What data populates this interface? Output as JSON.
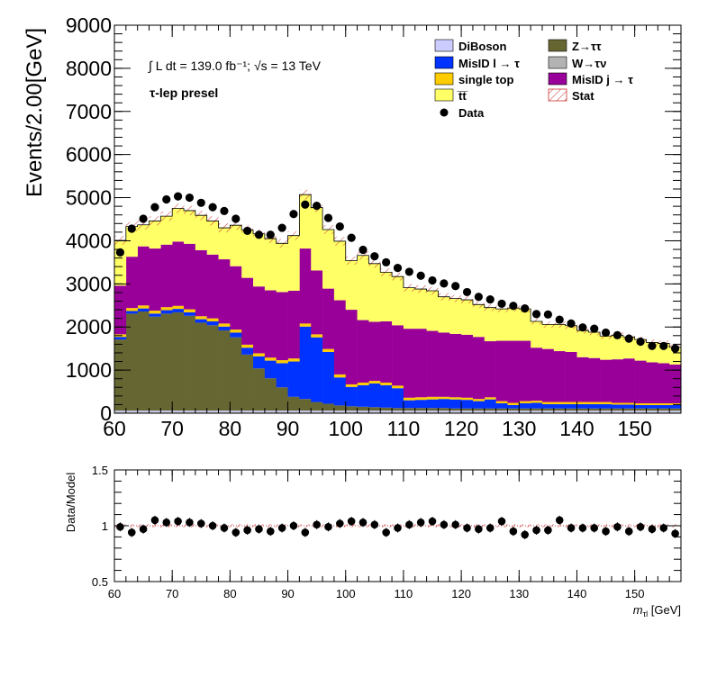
{
  "chart_data": [
    {
      "type": "bar",
      "ylabel": "Events/2.00[GeV]",
      "xlim": [
        60,
        158
      ],
      "ylim": [
        0,
        9000
      ],
      "bin_width": 2,
      "x_ticks": [
        60,
        70,
        80,
        90,
        100,
        110,
        120,
        130,
        140,
        150
      ],
      "y_ticks": [
        0,
        1000,
        2000,
        3000,
        4000,
        5000,
        6000,
        7000,
        8000,
        9000
      ],
      "annotation_lumi": "∫ L dt = 139.0 fb⁻¹;  √s = 13 TeV",
      "annotation_region": "τ-lep presel",
      "legend_placement": "top-right",
      "legend": [
        {
          "name": "DiBoson",
          "color": "#ccccff"
        },
        {
          "name": "Z→ττ",
          "color": "#666633"
        },
        {
          "name": "MisID l → τ",
          "color": "#0033ff"
        },
        {
          "name": "W→τν",
          "color": "#b3b3b3"
        },
        {
          "name": "single top",
          "color": "#ffcc00"
        },
        {
          "name": "MisID j → τ",
          "color": "#990099"
        },
        {
          "name": "t̅t̅",
          "color": "#ffff66"
        },
        {
          "name": "Stat",
          "color": "#cc3333"
        },
        {
          "name": "Data",
          "color": "#000000"
        }
      ],
      "stack_order": [
        "W→τν",
        "DiBoson",
        "Z→ττ",
        "MisID l → τ",
        "single top",
        "MisID j → τ",
        "t̅t̅"
      ],
      "x_bin_low_edges": [
        60,
        62,
        64,
        66,
        68,
        70,
        72,
        74,
        76,
        78,
        80,
        82,
        84,
        86,
        88,
        90,
        92,
        94,
        96,
        98,
        100,
        102,
        104,
        106,
        108,
        110,
        112,
        114,
        116,
        118,
        120,
        122,
        124,
        126,
        128,
        130,
        132,
        134,
        136,
        138,
        140,
        142,
        144,
        146,
        148,
        150,
        152,
        154,
        156
      ],
      "series": [
        {
          "name": "W→τν",
          "color": "#b3b3b3",
          "values": [
            30,
            30,
            30,
            30,
            30,
            30,
            30,
            30,
            30,
            30,
            30,
            30,
            30,
            30,
            30,
            30,
            30,
            30,
            30,
            30,
            30,
            30,
            30,
            30,
            30,
            30,
            30,
            30,
            30,
            30,
            30,
            30,
            30,
            30,
            30,
            30,
            30,
            30,
            30,
            30,
            30,
            30,
            30,
            30,
            30,
            30,
            30,
            30,
            30
          ]
        },
        {
          "name": "DiBoson",
          "color": "#ccccff",
          "values": [
            30,
            30,
            30,
            30,
            30,
            30,
            30,
            30,
            30,
            30,
            30,
            30,
            30,
            30,
            30,
            30,
            30,
            30,
            30,
            30,
            30,
            30,
            30,
            30,
            30,
            30,
            30,
            30,
            30,
            30,
            30,
            30,
            30,
            30,
            30,
            30,
            30,
            30,
            30,
            30,
            30,
            30,
            30,
            30,
            30,
            30,
            30,
            30,
            30
          ]
        },
        {
          "name": "Z→ττ",
          "color": "#666633",
          "values": [
            1650,
            2250,
            2300,
            2180,
            2250,
            2280,
            2200,
            2040,
            1980,
            1860,
            1700,
            1300,
            980,
            750,
            540,
            320,
            270,
            200,
            160,
            120,
            100,
            90,
            80,
            70,
            60,
            60,
            60,
            60,
            60,
            50,
            50,
            50,
            50,
            50,
            50,
            50,
            50,
            50,
            50,
            50,
            50,
            50,
            50,
            50,
            50,
            50,
            50,
            50,
            50
          ]
        },
        {
          "name": "MisID l → τ",
          "color": "#0033ff",
          "values": [
            60,
            60,
            70,
            70,
            80,
            80,
            80,
            80,
            90,
            90,
            110,
            160,
            280,
            410,
            560,
            820,
            1680,
            1500,
            1200,
            650,
            450,
            500,
            550,
            520,
            460,
            180,
            190,
            200,
            210,
            210,
            200,
            170,
            210,
            120,
            80,
            120,
            130,
            100,
            100,
            100,
            100,
            100,
            100,
            90,
            90,
            80,
            80,
            80,
            80
          ]
        },
        {
          "name": "single top",
          "color": "#ffcc00",
          "values": [
            60,
            70,
            70,
            70,
            70,
            70,
            70,
            70,
            70,
            70,
            70,
            70,
            70,
            70,
            70,
            70,
            70,
            70,
            70,
            70,
            60,
            60,
            60,
            60,
            60,
            60,
            60,
            60,
            50,
            50,
            50,
            50,
            50,
            50,
            50,
            50,
            50,
            50,
            50,
            50,
            50,
            50,
            50,
            40,
            40,
            40,
            40,
            40,
            40
          ]
        },
        {
          "name": "MisID j → τ",
          "color": "#990099",
          "values": [
            1130,
            1190,
            1370,
            1440,
            1450,
            1490,
            1520,
            1530,
            1480,
            1490,
            1470,
            1550,
            1550,
            1560,
            1580,
            1570,
            1740,
            1480,
            1400,
            1720,
            1730,
            1450,
            1370,
            1420,
            1400,
            1600,
            1590,
            1530,
            1490,
            1470,
            1460,
            1440,
            1300,
            1400,
            1440,
            1400,
            1230,
            1230,
            1180,
            1160,
            1040,
            1020,
            980,
            1010,
            1030,
            990,
            950,
            930,
            900
          ]
        },
        {
          "name": "t̅t̅",
          "color": "#ffff66",
          "values": [
            1050,
            700,
            500,
            640,
            660,
            770,
            770,
            810,
            780,
            730,
            950,
            1110,
            1220,
            1200,
            1130,
            1280,
            1250,
            1460,
            1370,
            1370,
            1140,
            1500,
            1350,
            1140,
            1130,
            950,
            920,
            930,
            830,
            820,
            810,
            750,
            780,
            740,
            760,
            740,
            610,
            570,
            620,
            610,
            620,
            600,
            550,
            560,
            500,
            490,
            460,
            460,
            400
          ]
        },
        {
          "name": "Data",
          "color": "#000000",
          "values": [
            3730,
            4280,
            4510,
            4780,
            4960,
            5030,
            5000,
            4880,
            4780,
            4690,
            4510,
            4230,
            4140,
            4140,
            4300,
            4620,
            4840,
            4810,
            4530,
            4330,
            4070,
            3790,
            3640,
            3500,
            3370,
            3280,
            3190,
            3080,
            3010,
            2950,
            2810,
            2700,
            2640,
            2540,
            2490,
            2430,
            2300,
            2290,
            2170,
            2080,
            1990,
            1960,
            1870,
            1810,
            1730,
            1660,
            1560,
            1560,
            1500
          ]
        }
      ]
    },
    {
      "type": "scatter",
      "ylabel": "Data/Model",
      "xlabel": "mτl [GeV]",
      "xlabel_main": "m",
      "xlabel_sub": "τl",
      "xlabel_unit": " [GeV]",
      "xlim": [
        60,
        158
      ],
      "ylim": [
        0.5,
        1.5
      ],
      "x_ticks": [
        60,
        70,
        80,
        90,
        100,
        110,
        120,
        130,
        140,
        150
      ],
      "y_ticks": [
        0.5,
        1,
        1.5
      ],
      "reference_line": 1,
      "x": [
        61,
        63,
        65,
        67,
        69,
        71,
        73,
        75,
        77,
        79,
        81,
        83,
        85,
        87,
        89,
        91,
        93,
        95,
        97,
        99,
        101,
        103,
        105,
        107,
        109,
        111,
        113,
        115,
        117,
        119,
        121,
        123,
        125,
        127,
        129,
        131,
        133,
        135,
        137,
        139,
        141,
        143,
        145,
        147,
        149,
        151,
        153,
        155,
        157
      ],
      "y": [
        0.99,
        0.94,
        0.97,
        1.05,
        1.03,
        1.04,
        1.03,
        1.02,
        1.0,
        0.98,
        0.94,
        0.96,
        0.97,
        0.95,
        0.98,
        1.0,
        0.94,
        1.01,
        0.99,
        1.02,
        1.04,
        1.03,
        1.01,
        0.94,
        0.98,
        1.01,
        1.03,
        1.04,
        1.01,
        1.01,
        0.98,
        0.97,
        0.98,
        1.04,
        0.95,
        0.92,
        0.96,
        0.96,
        1.05,
        0.98,
        0.98,
        0.98,
        0.95,
        0.99,
        0.95,
        0.99,
        0.97,
        0.98,
        0.93
      ]
    }
  ]
}
